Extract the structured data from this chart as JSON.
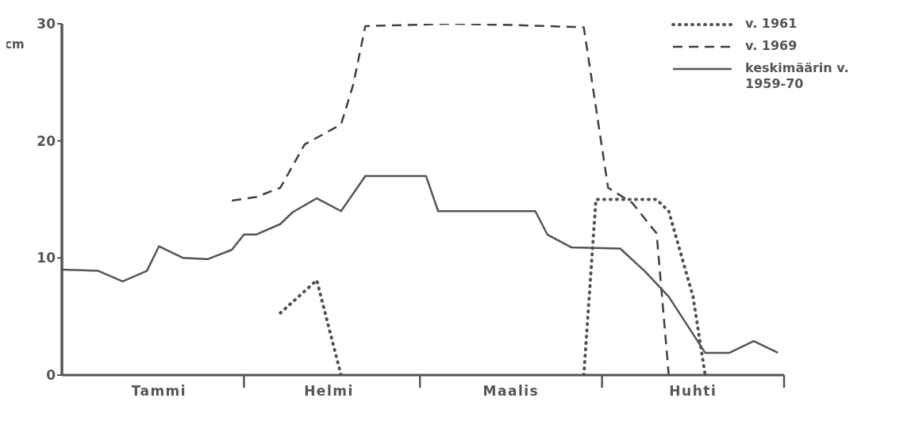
{
  "chart_data": {
    "type": "line",
    "ylabel": "cm",
    "categories": [
      null,
      null,
      null,
      null,
      null,
      null,
      null,
      null,
      "Tammi",
      null,
      null,
      null,
      null,
      null,
      null,
      null,
      null,
      null,
      null,
      null,
      null,
      null,
      "Helmi",
      null,
      null,
      null,
      null,
      null,
      null,
      null,
      null,
      null,
      null,
      null,
      null,
      null,
      null,
      "Maalis",
      null,
      null,
      null,
      null,
      null,
      null,
      null,
      null,
      null,
      null,
      null,
      null,
      null,
      null,
      "Huhti",
      null,
      null,
      null,
      null,
      null,
      null,
      null
    ],
    "ylim": [
      0,
      30
    ],
    "yticks": [
      0,
      10,
      20,
      30
    ],
    "grid": false,
    "legend": "top right",
    "marker": "none",
    "series": [
      {
        "name": "v. 1961",
        "color": "#505050",
        "line_style": "dotted",
        "values": [
          null,
          null,
          null,
          null,
          null,
          null,
          null,
          null,
          null,
          null,
          null,
          null,
          null,
          null,
          null,
          null,
          null,
          null,
          5.3,
          null,
          null,
          8.1,
          null,
          0,
          null,
          null,
          null,
          null,
          null,
          null,
          null,
          null,
          null,
          null,
          null,
          null,
          null,
          null,
          null,
          null,
          null,
          null,
          null,
          null,
          null,
          null,
          null,
          null,
          null,
          null,
          null,
          null,
          null,
          null,
          null,
          null,
          null,
          null,
          null,
          null
        ]
      },
      {
        "name": "v. 1969",
        "color": "#404040",
        "line_style": "dashed",
        "values": [
          null,
          null,
          null,
          null,
          null,
          null,
          null,
          null,
          null,
          null,
          null,
          null,
          null,
          null,
          14.9,
          null,
          15.2,
          null,
          16,
          null,
          19.7,
          null,
          null,
          21.4,
          24.8,
          29.8,
          null,
          null,
          null,
          null,
          null,
          null,
          30,
          null,
          null,
          null,
          null,
          29.9,
          null,
          null,
          null,
          null,
          null,
          29.7,
          null,
          16,
          null,
          14.7,
          null,
          12.1,
          0,
          null,
          null,
          null,
          null,
          null,
          null,
          null,
          null,
          null
        ]
      },
      {
        "name": "keskimäärin v. 1959-70",
        "color": "#555555",
        "line_style": "solid",
        "values": [
          9.0,
          null,
          null,
          8.9,
          null,
          8.0,
          null,
          8.9,
          11.0,
          null,
          10.0,
          null,
          9.9,
          null,
          10.7,
          12.0,
          12.0,
          null,
          12.9,
          13.9,
          null,
          15.1,
          null,
          14.0,
          null,
          17.0,
          null,
          null,
          null,
          null,
          17.0,
          14.0,
          null,
          null,
          null,
          null,
          null,
          null,
          null,
          14.0,
          12.0,
          null,
          10.9,
          null,
          null,
          null,
          10.8,
          null,
          8.9,
          null,
          6.7,
          null,
          null,
          1.9,
          null,
          1.9,
          null,
          2.9,
          null,
          1.9
        ]
      },
      {
        "color": "#505050",
        "line_style": "dotted",
        "values": [
          null,
          null,
          null,
          null,
          null,
          null,
          null,
          null,
          null,
          null,
          null,
          null,
          null,
          null,
          null,
          null,
          null,
          null,
          null,
          null,
          null,
          null,
          null,
          null,
          null,
          null,
          null,
          null,
          null,
          null,
          null,
          null,
          null,
          null,
          null,
          null,
          null,
          null,
          null,
          null,
          null,
          null,
          null,
          0,
          15,
          null,
          null,
          null,
          null,
          15,
          14,
          null,
          6.7,
          0,
          null,
          null,
          null,
          null,
          null,
          null
        ]
      }
    ]
  }
}
